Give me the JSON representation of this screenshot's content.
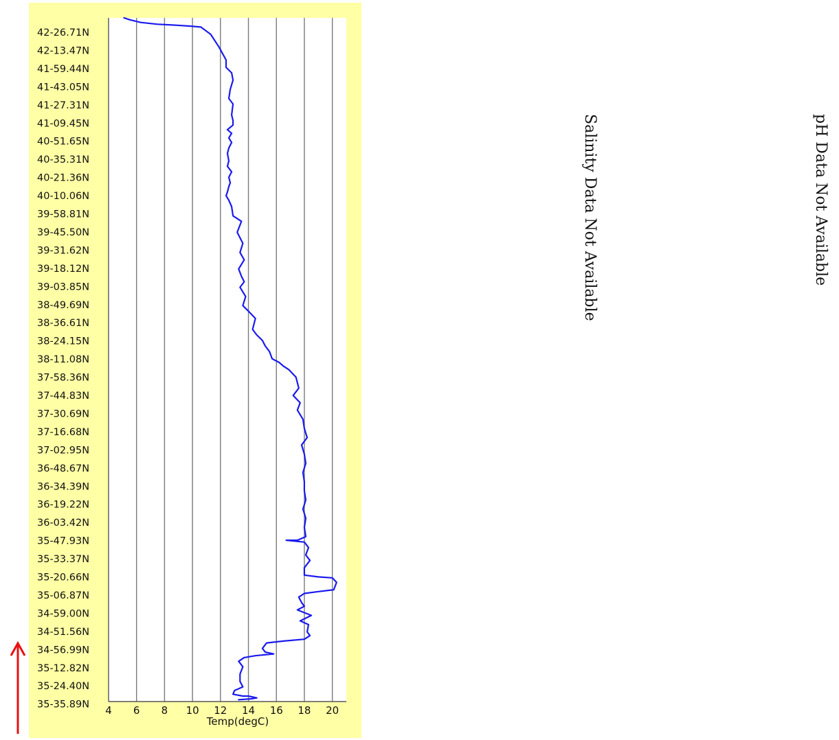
{
  "chart_data": {
    "type": "line",
    "orientation": "vertical",
    "xlabel": "Temp(degC)",
    "xlim": [
      4,
      21
    ],
    "x_ticks": [
      4,
      6,
      8,
      10,
      12,
      14,
      16,
      18,
      20
    ],
    "grid": true,
    "colors": {
      "line": "#1a1aee",
      "grid": "#7a7a7a",
      "panel": "#ffffa6",
      "plot": "#ffffff",
      "arrow": "#e81010"
    },
    "y_tick_labels": [
      "42-26.71N",
      "42-13.47N",
      "41-59.44N",
      "41-43.05N",
      "41-27.31N",
      "41-09.45N",
      "40-51.65N",
      "40-35.31N",
      "40-21.36N",
      "40-10.06N",
      "39-58.81N",
      "39-45.50N",
      "39-31.62N",
      "39-18.12N",
      "39-03.85N",
      "38-49.69N",
      "38-36.61N",
      "38-24.15N",
      "38-11.08N",
      "37-58.36N",
      "37-44.83N",
      "37-30.69N",
      "37-16.68N",
      "37-02.95N",
      "36-48.67N",
      "36-34.39N",
      "36-19.22N",
      "36-03.42N",
      "35-47.93N",
      "35-33.37N",
      "35-20.66N",
      "35-06.87N",
      "34-59.00N",
      "34-51.56N",
      "34-56.99N",
      "35-12.82N",
      "35-24.40N",
      "35-35.89N"
    ],
    "series": [
      {
        "points": [
          [
            5.1,
            0.0
          ],
          [
            5.5,
            0.1
          ],
          [
            6.3,
            0.25
          ],
          [
            7.5,
            0.35
          ],
          [
            8.8,
            0.4
          ],
          [
            9.8,
            0.45
          ],
          [
            10.6,
            0.5
          ],
          [
            11.3,
            0.9
          ],
          [
            11.9,
            1.6
          ],
          [
            12.4,
            2.3
          ],
          [
            12.4,
            2.7
          ],
          [
            12.8,
            3.0
          ],
          [
            12.9,
            3.4
          ],
          [
            12.7,
            3.9
          ],
          [
            12.6,
            4.4
          ],
          [
            12.9,
            4.7
          ],
          [
            12.8,
            5.3
          ],
          [
            12.9,
            5.6
          ],
          [
            12.9,
            5.85
          ],
          [
            12.5,
            6.1
          ],
          [
            12.8,
            6.3
          ],
          [
            12.6,
            6.55
          ],
          [
            12.8,
            6.8
          ],
          [
            12.6,
            7.1
          ],
          [
            12.5,
            7.4
          ],
          [
            12.6,
            7.8
          ],
          [
            12.5,
            8.1
          ],
          [
            12.8,
            8.4
          ],
          [
            12.6,
            8.7
          ],
          [
            12.7,
            9.0
          ],
          [
            12.6,
            9.2
          ],
          [
            12.5,
            9.5
          ],
          [
            12.4,
            9.7
          ],
          [
            12.6,
            9.95
          ],
          [
            12.8,
            10.3
          ],
          [
            12.9,
            10.8
          ],
          [
            13.5,
            11.1
          ],
          [
            13.2,
            11.7
          ],
          [
            13.6,
            12.3
          ],
          [
            13.4,
            12.8
          ],
          [
            13.7,
            13.2
          ],
          [
            13.3,
            13.7
          ],
          [
            13.5,
            14.1
          ],
          [
            13.7,
            14.4
          ],
          [
            13.4,
            14.7
          ],
          [
            13.8,
            15.2
          ],
          [
            13.6,
            15.7
          ],
          [
            14.0,
            16.0
          ],
          [
            14.5,
            16.4
          ],
          [
            14.3,
            17.0
          ],
          [
            14.6,
            17.3
          ],
          [
            15.0,
            17.6
          ],
          [
            15.2,
            17.9
          ],
          [
            15.5,
            18.2
          ],
          [
            15.7,
            18.6
          ],
          [
            16.2,
            18.8
          ],
          [
            16.5,
            19.0
          ],
          [
            16.9,
            19.2
          ],
          [
            17.4,
            19.6
          ],
          [
            17.6,
            20.2
          ],
          [
            17.2,
            20.6
          ],
          [
            17.7,
            21.0
          ],
          [
            17.5,
            21.4
          ],
          [
            17.9,
            21.9
          ],
          [
            18.0,
            22.4
          ],
          [
            18.2,
            22.9
          ],
          [
            17.8,
            23.3
          ],
          [
            18.0,
            23.8
          ],
          [
            18.1,
            24.3
          ],
          [
            17.9,
            24.8
          ],
          [
            18.0,
            25.3
          ],
          [
            18.0,
            25.8
          ],
          [
            18.1,
            26.3
          ],
          [
            17.9,
            26.8
          ],
          [
            18.1,
            27.3
          ],
          [
            18.0,
            27.8
          ],
          [
            18.1,
            28.3
          ],
          [
            17.5,
            28.5
          ],
          [
            16.7,
            28.5
          ],
          [
            18.0,
            28.6
          ],
          [
            18.3,
            28.9
          ],
          [
            18.1,
            29.3
          ],
          [
            18.4,
            29.6
          ],
          [
            18.0,
            30.0
          ],
          [
            18.0,
            30.4
          ],
          [
            19.0,
            30.5
          ],
          [
            20.0,
            30.55
          ],
          [
            20.3,
            30.8
          ],
          [
            20.1,
            31.2
          ],
          [
            19.0,
            31.3
          ],
          [
            18.0,
            31.4
          ],
          [
            17.6,
            31.6
          ],
          [
            17.8,
            31.9
          ],
          [
            18.0,
            32.1
          ],
          [
            17.5,
            32.3
          ],
          [
            18.5,
            32.6
          ],
          [
            17.7,
            32.9
          ],
          [
            18.3,
            33.1
          ],
          [
            18.2,
            33.5
          ],
          [
            18.4,
            33.7
          ],
          [
            18.0,
            33.9
          ],
          [
            16.5,
            34.0
          ],
          [
            15.3,
            34.1
          ],
          [
            15.0,
            34.4
          ],
          [
            15.2,
            34.6
          ],
          [
            15.8,
            34.7
          ],
          [
            14.5,
            34.8
          ],
          [
            13.7,
            34.9
          ],
          [
            13.3,
            35.1
          ],
          [
            13.6,
            35.4
          ],
          [
            13.4,
            35.8
          ],
          [
            13.4,
            36.2
          ],
          [
            13.6,
            36.5
          ],
          [
            13.0,
            36.7
          ],
          [
            12.9,
            36.9
          ],
          [
            13.6,
            37.0
          ],
          [
            14.0,
            37.0
          ],
          [
            14.6,
            37.1
          ],
          [
            14.2,
            37.15
          ],
          [
            13.3,
            37.2
          ]
        ]
      }
    ]
  },
  "notes": {
    "salinity": "Salinity Data Not Available",
    "ph": "pH Data Not Available"
  }
}
